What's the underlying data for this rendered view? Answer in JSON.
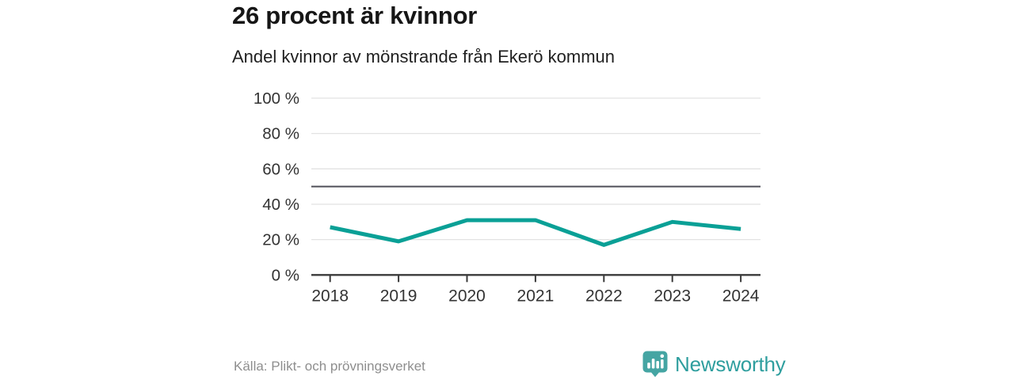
{
  "header": {
    "title": "26 procent är kvinnor",
    "subtitle": "Andel kvinnor av mönstrande från Ekerö kommun"
  },
  "chart_data": {
    "type": "line",
    "title": "26 procent är kvinnor",
    "subtitle": "Andel kvinnor av mönstrande från Ekerö kommun",
    "x": [
      "2018",
      "2019",
      "2020",
      "2021",
      "2022",
      "2023",
      "2024"
    ],
    "series": [
      {
        "name": "Andel kvinnor av mönstrande",
        "values": [
          27,
          19,
          31,
          31,
          17,
          30,
          26
        ]
      }
    ],
    "unit": "%",
    "ylim": [
      0,
      100
    ],
    "yticks": [
      0,
      20,
      40,
      60,
      80,
      100
    ],
    "ytick_suffix": " %",
    "reference_line": 50,
    "grid": true,
    "legend_position": "none",
    "colors": {
      "line": "#0aa096",
      "gridline": "#e2e2e2",
      "reference_line": "#4f4f58",
      "axis": "#3a3a3a",
      "tick_label": "#333333"
    }
  },
  "footer": {
    "source": "Källa: Plikt- och prövningsverket",
    "brand": "Newsworthy"
  }
}
